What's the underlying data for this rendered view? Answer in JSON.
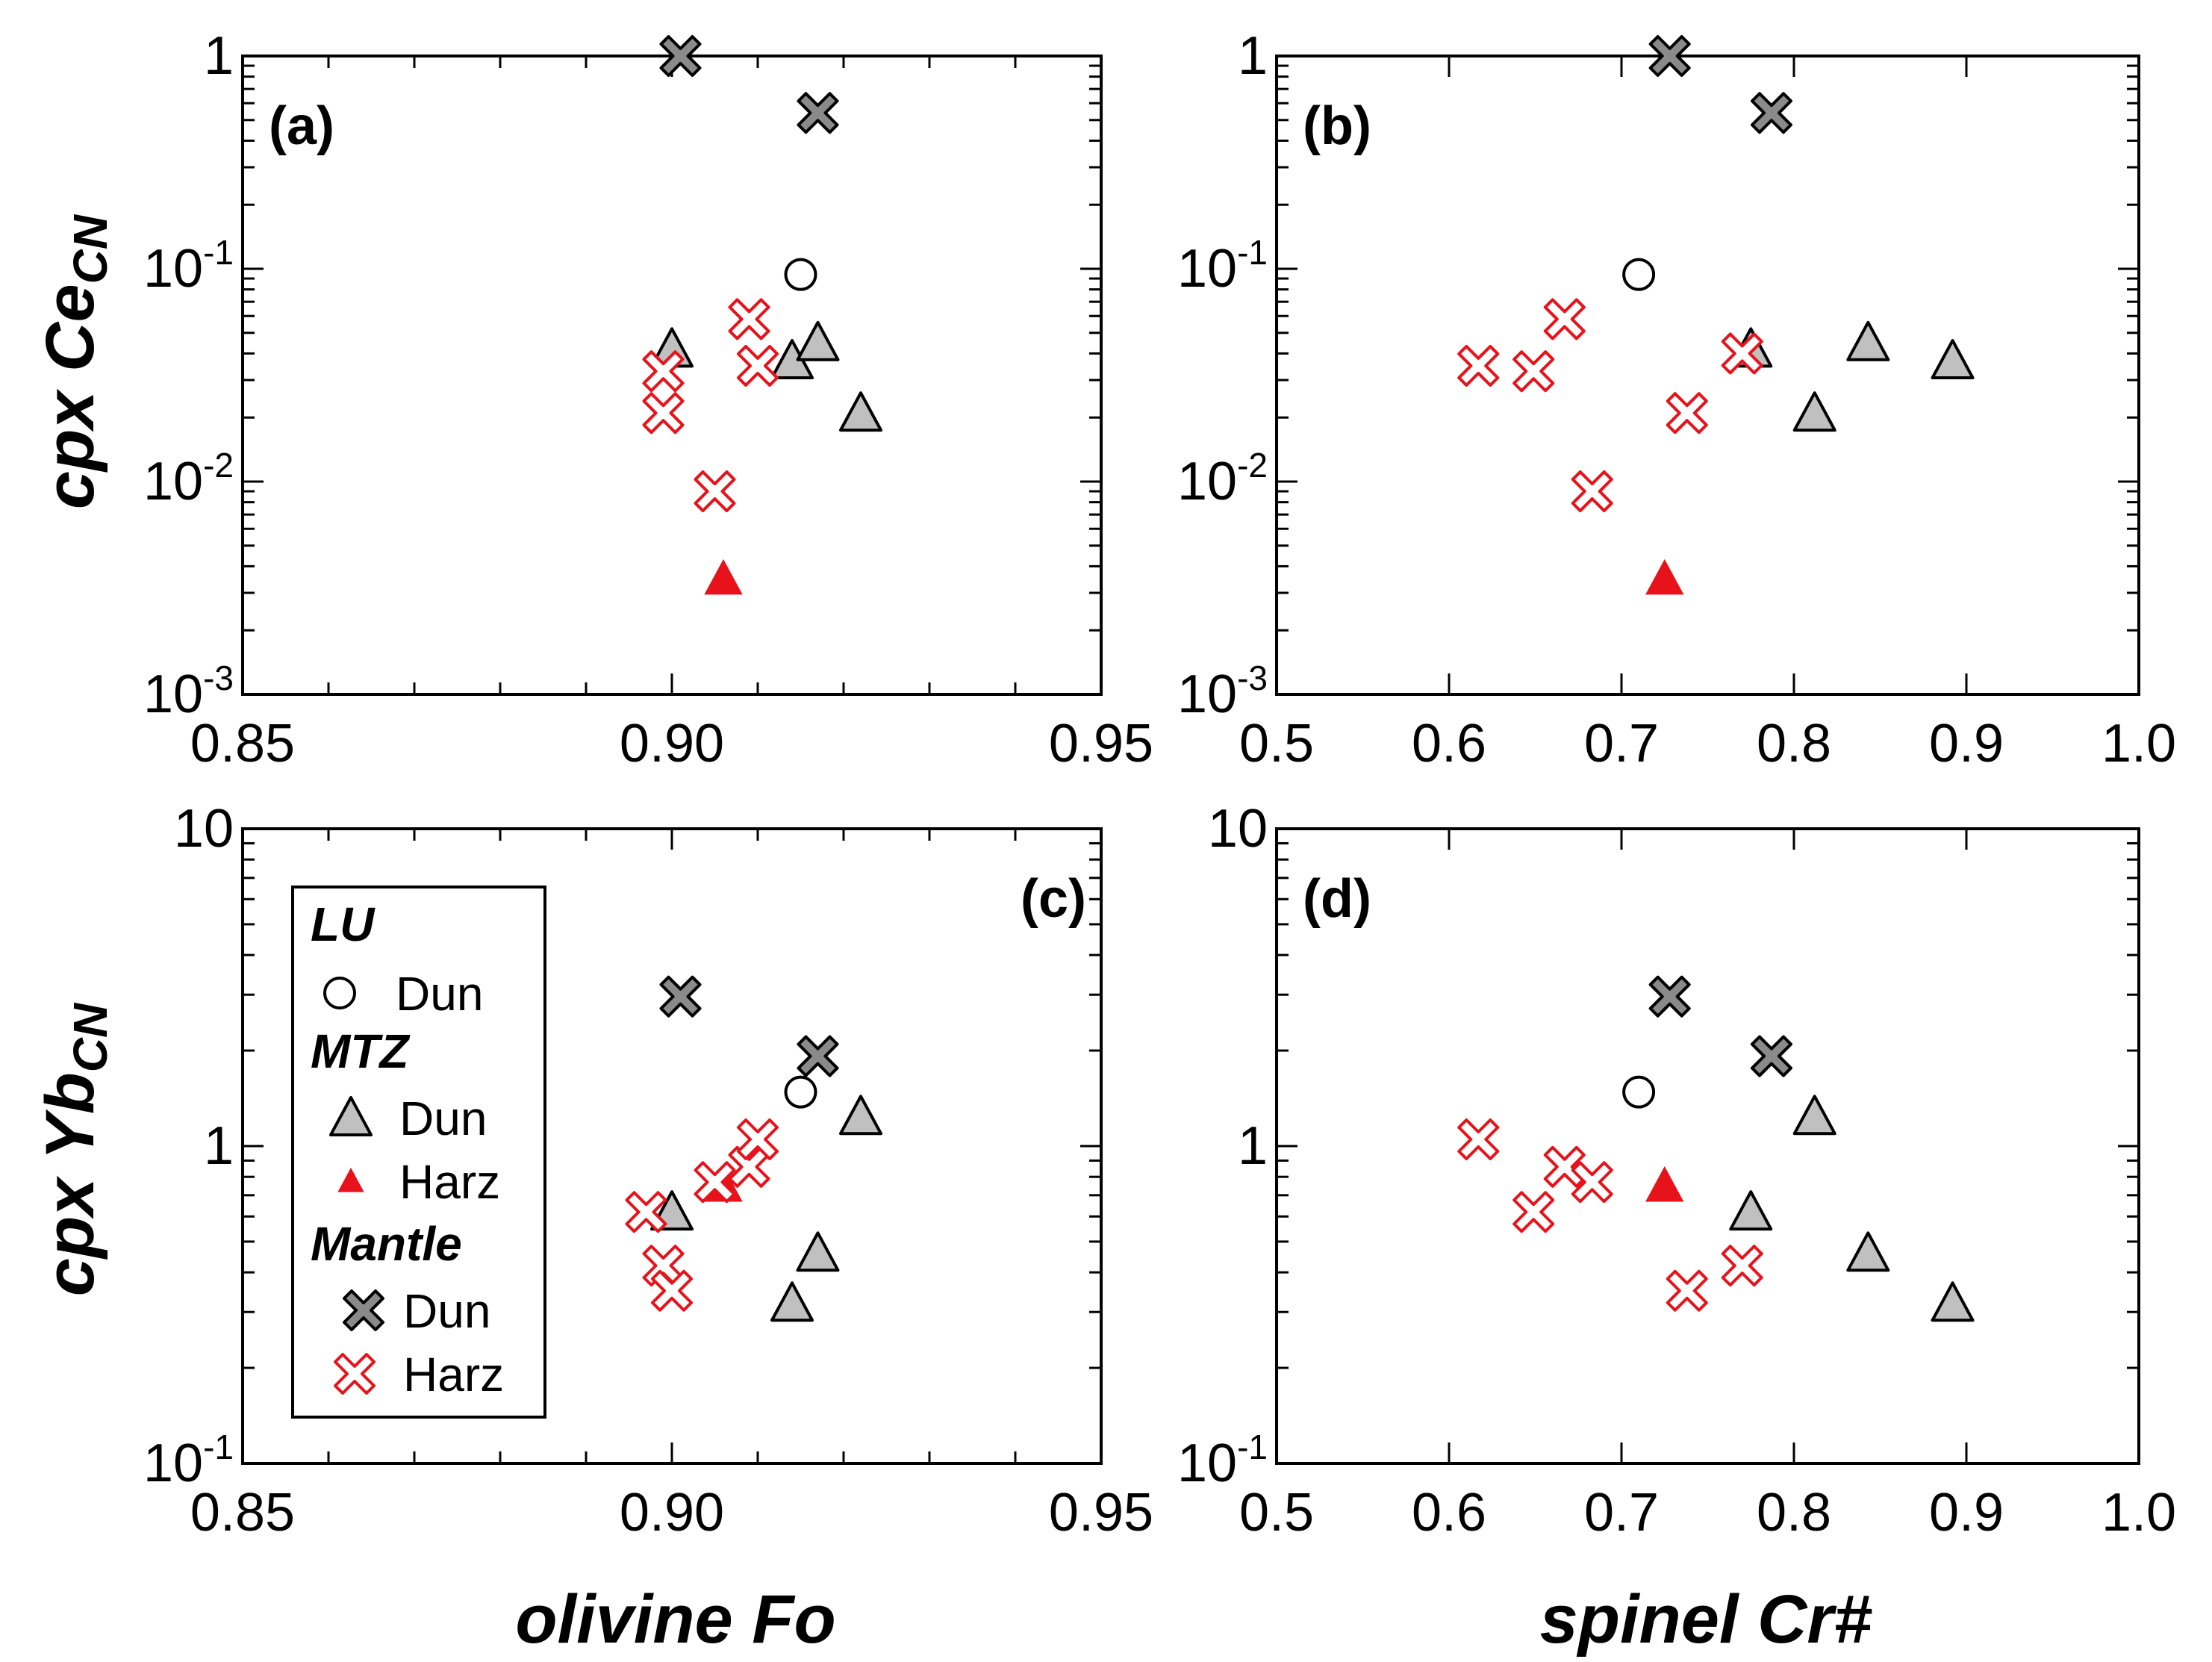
{
  "chart_data": {
    "type": "scatter",
    "colors": {
      "grey_fill": "#c0c0c0",
      "dark_grey_fill": "#8a8a8a",
      "red": "#e8121a",
      "black": "#000000",
      "white": "#ffffff"
    },
    "shared_labels": {
      "ylabel_top": "cpx Ce",
      "ylabel_top_sub": "CN",
      "ylabel_bottom": "cpx Yb",
      "ylabel_bottom_sub": "CN",
      "xlabel_left": "olivine Fo",
      "xlabel_right": "spinel Cr#"
    },
    "legend": {
      "groups": [
        {
          "title": "LU",
          "entries": [
            {
              "label": "Dun",
              "marker": "circle"
            }
          ]
        },
        {
          "title": "MTZ",
          "entries": [
            {
              "label": "Dun",
              "marker": "grey-triangle"
            },
            {
              "label": "Harz",
              "marker": "red-triangle"
            }
          ]
        },
        {
          "title": "Mantle",
          "entries": [
            {
              "label": "Dun",
              "marker": "grey-cross"
            },
            {
              "label": "Harz",
              "marker": "red-cross"
            }
          ]
        }
      ]
    },
    "panels": [
      {
        "id": "a",
        "label": "(a)",
        "xlim": [
          0.85,
          0.95
        ],
        "x_major_ticks": [
          0.85,
          0.9,
          0.95
        ],
        "x_tick_labels": [
          "0.85",
          "0.90",
          "0.95"
        ],
        "x_minor_ticks": [
          0.86,
          0.87,
          0.88,
          0.89,
          0.91,
          0.92,
          0.93,
          0.94
        ],
        "y_scale": "log",
        "ylim": [
          0.001,
          1
        ],
        "y_tick_labels": [
          {
            "value": 1,
            "base": "1",
            "exp": ""
          },
          {
            "value": 0.1,
            "base": "10",
            "exp": "-1"
          },
          {
            "value": 0.01,
            "base": "10",
            "exp": "-2"
          },
          {
            "value": 0.001,
            "base": "10",
            "exp": "-3"
          }
        ],
        "series": [
          {
            "name": "LU Dun",
            "marker": "circle",
            "points": [
              [
                0.915,
                0.094
              ]
            ]
          },
          {
            "name": "MTZ Dun",
            "marker": "grey-triangle",
            "points": [
              [
                0.9,
                0.042
              ],
              [
                0.914,
                0.037
              ],
              [
                0.917,
                0.045
              ],
              [
                0.922,
                0.021
              ]
            ]
          },
          {
            "name": "MTZ Harz",
            "marker": "red-triangle",
            "points": [
              [
                0.906,
                0.0035
              ]
            ]
          },
          {
            "name": "Mantle Dun",
            "marker": "grey-cross",
            "points": [
              [
                0.901,
                1.0
              ],
              [
                0.917,
                0.54
              ]
            ]
          },
          {
            "name": "Mantle Harz",
            "marker": "red-cross",
            "points": [
              [
                0.899,
                0.033
              ],
              [
                0.899,
                0.021
              ],
              [
                0.909,
                0.058
              ],
              [
                0.91,
                0.035
              ],
              [
                0.905,
                0.009
              ]
            ]
          }
        ]
      },
      {
        "id": "b",
        "label": "(b)",
        "xlim": [
          0.5,
          1.0
        ],
        "x_major_ticks": [
          0.5,
          0.6,
          0.7,
          0.8,
          0.9,
          1.0
        ],
        "x_tick_labels": [
          "0.5",
          "0.6",
          "0.7",
          "0.8",
          "0.9",
          "1.0"
        ],
        "x_minor_ticks": [],
        "y_scale": "log",
        "ylim": [
          0.001,
          1
        ],
        "y_tick_labels": [
          {
            "value": 1,
            "base": "1",
            "exp": ""
          },
          {
            "value": 0.1,
            "base": "10",
            "exp": "-1"
          },
          {
            "value": 0.01,
            "base": "10",
            "exp": "-2"
          },
          {
            "value": 0.001,
            "base": "10",
            "exp": "-3"
          }
        ],
        "series": [
          {
            "name": "LU Dun",
            "marker": "circle",
            "points": [
              [
                0.71,
                0.094
              ]
            ]
          },
          {
            "name": "MTZ Dun",
            "marker": "grey-triangle",
            "points": [
              [
                0.775,
                0.042
              ],
              [
                0.812,
                0.021
              ],
              [
                0.843,
                0.045
              ],
              [
                0.892,
                0.037
              ]
            ]
          },
          {
            "name": "MTZ Harz",
            "marker": "red-triangle",
            "points": [
              [
                0.725,
                0.0035
              ]
            ]
          },
          {
            "name": "Mantle Dun",
            "marker": "grey-cross",
            "points": [
              [
                0.728,
                1.0
              ],
              [
                0.787,
                0.54
              ]
            ]
          },
          {
            "name": "Mantle Harz",
            "marker": "red-cross",
            "points": [
              [
                0.617,
                0.035
              ],
              [
                0.649,
                0.033
              ],
              [
                0.667,
                0.058
              ],
              [
                0.683,
                0.009
              ],
              [
                0.738,
                0.021
              ],
              [
                0.77,
                0.04
              ]
            ]
          }
        ]
      },
      {
        "id": "c",
        "label": "(c)",
        "xlim": [
          0.85,
          0.95
        ],
        "x_major_ticks": [
          0.85,
          0.9,
          0.95
        ],
        "x_tick_labels": [
          "0.85",
          "0.90",
          "0.95"
        ],
        "x_minor_ticks": [
          0.86,
          0.87,
          0.88,
          0.89,
          0.91,
          0.92,
          0.93,
          0.94
        ],
        "y_scale": "log",
        "ylim": [
          0.1,
          10
        ],
        "y_tick_labels": [
          {
            "value": 10,
            "base": "10",
            "exp": ""
          },
          {
            "value": 1,
            "base": "1",
            "exp": ""
          },
          {
            "value": 0.1,
            "base": "10",
            "exp": "-1"
          }
        ],
        "series": [
          {
            "name": "LU Dun",
            "marker": "circle",
            "points": [
              [
                0.915,
                1.48
              ]
            ]
          },
          {
            "name": "MTZ Dun",
            "marker": "grey-triangle",
            "points": [
              [
                0.9,
                0.62
              ],
              [
                0.914,
                0.32
              ],
              [
                0.917,
                0.46
              ],
              [
                0.922,
                1.24
              ]
            ]
          },
          {
            "name": "MTZ Harz",
            "marker": "red-triangle",
            "points": [
              [
                0.906,
                0.75
              ]
            ]
          },
          {
            "name": "Mantle Dun",
            "marker": "grey-cross",
            "points": [
              [
                0.901,
                2.96
              ],
              [
                0.917,
                1.92
              ]
            ]
          },
          {
            "name": "Mantle Harz",
            "marker": "red-cross",
            "points": [
              [
                0.897,
                0.62
              ],
              [
                0.899,
                0.42
              ],
              [
                0.9,
                0.35
              ],
              [
                0.905,
                0.77
              ],
              [
                0.909,
                0.86
              ],
              [
                0.91,
                1.05
              ]
            ]
          }
        ]
      },
      {
        "id": "d",
        "label": "(d)",
        "xlim": [
          0.5,
          1.0
        ],
        "x_major_ticks": [
          0.5,
          0.6,
          0.7,
          0.8,
          0.9,
          1.0
        ],
        "x_tick_labels": [
          "0.5",
          "0.6",
          "0.7",
          "0.8",
          "0.9",
          "1.0"
        ],
        "x_minor_ticks": [],
        "y_scale": "log",
        "ylim": [
          0.1,
          10
        ],
        "y_tick_labels": [
          {
            "value": 10,
            "base": "10",
            "exp": ""
          },
          {
            "value": 1,
            "base": "1",
            "exp": ""
          },
          {
            "value": 0.1,
            "base": "10",
            "exp": "-1"
          }
        ],
        "series": [
          {
            "name": "LU Dun",
            "marker": "circle",
            "points": [
              [
                0.71,
                1.48
              ]
            ]
          },
          {
            "name": "MTZ Dun",
            "marker": "grey-triangle",
            "points": [
              [
                0.775,
                0.62
              ],
              [
                0.812,
                1.24
              ],
              [
                0.843,
                0.46
              ],
              [
                0.892,
                0.32
              ]
            ]
          },
          {
            "name": "MTZ Harz",
            "marker": "red-triangle",
            "points": [
              [
                0.725,
                0.75
              ]
            ]
          },
          {
            "name": "Mantle Dun",
            "marker": "grey-cross",
            "points": [
              [
                0.728,
                2.96
              ],
              [
                0.787,
                1.92
              ]
            ]
          },
          {
            "name": "Mantle Harz",
            "marker": "red-cross",
            "points": [
              [
                0.617,
                1.05
              ],
              [
                0.649,
                0.62
              ],
              [
                0.667,
                0.86
              ],
              [
                0.683,
                0.77
              ],
              [
                0.738,
                0.35
              ],
              [
                0.77,
                0.42
              ]
            ]
          }
        ]
      }
    ]
  }
}
